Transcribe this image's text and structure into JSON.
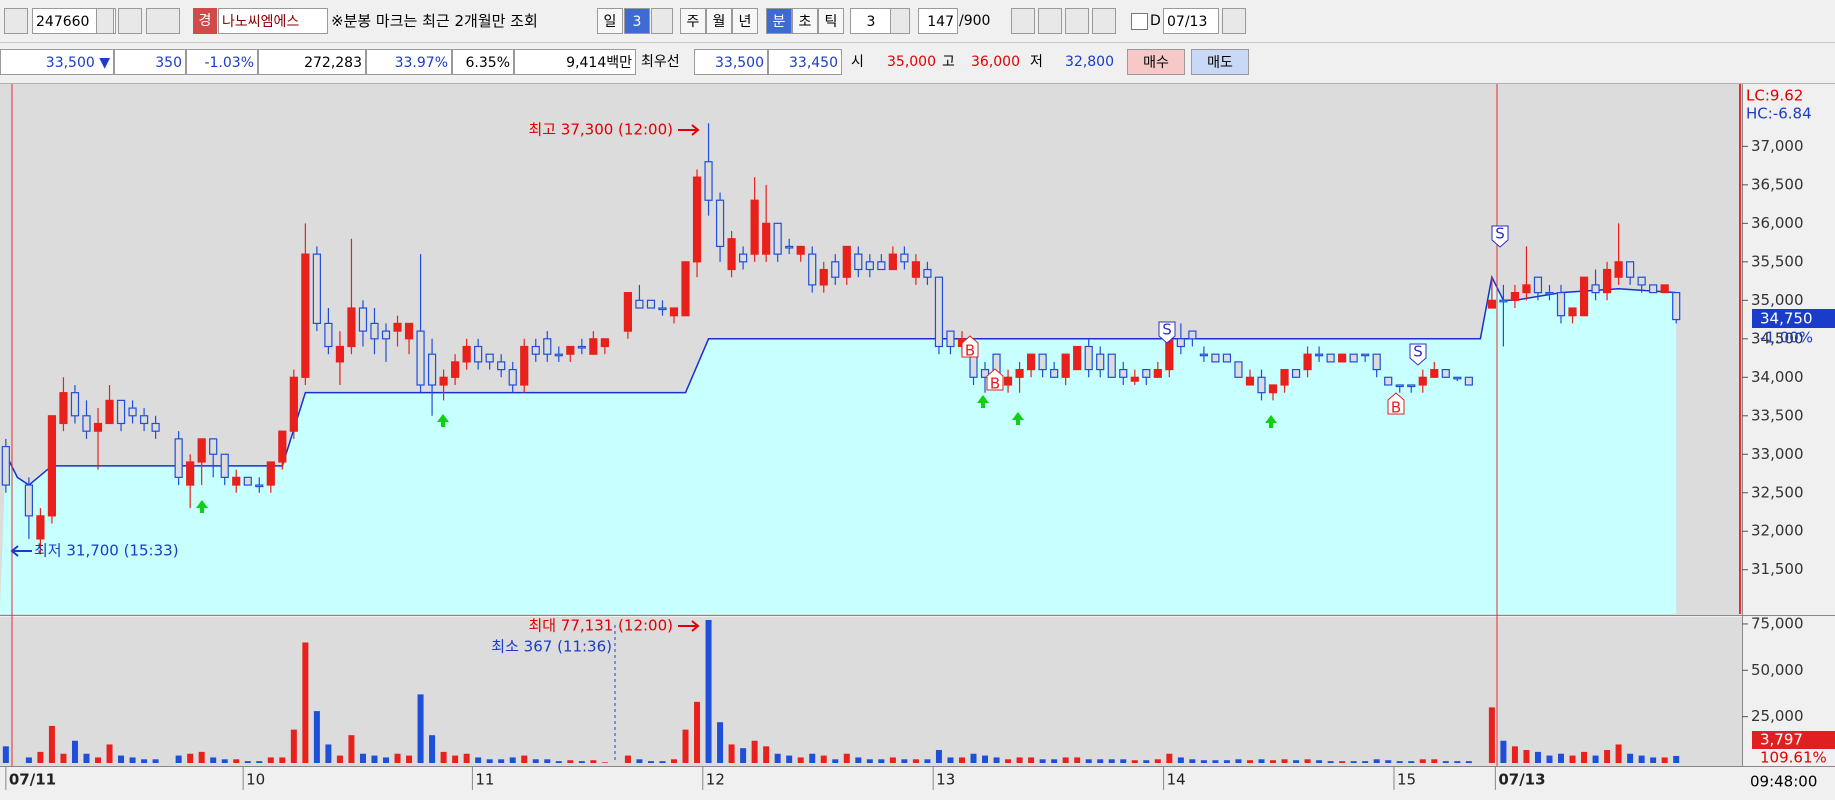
{
  "toolbar": {
    "code": "247660",
    "badge": "경",
    "name": "나노씨엠에스",
    "note": "※분봉 마크는 최근 2개월만 조회",
    "periods": [
      "일",
      "3",
      "주",
      "월",
      "년",
      "분",
      "초",
      "틱"
    ],
    "tick_count": "3",
    "count": "147",
    "max": "/900",
    "d_label": "D",
    "date": "07/13"
  },
  "quote": {
    "price": "33,500 ▼",
    "change": "350",
    "change_pct": "-1.03%",
    "volume": "272,283",
    "ratio1": "33.97%",
    "ratio2": "6.35%",
    "amount": "9,414백만",
    "best_label": "최우선",
    "ask": "33,500",
    "bid": "33,450",
    "open_label": "시",
    "open": "35,000",
    "high_label": "고",
    "high": "36,000",
    "low_label": "저",
    "low": "32,800",
    "buy": "매수",
    "sell": "매도"
  },
  "signals": {
    "buy": "B",
    "sell": "S"
  },
  "time_label": "09:48:00",
  "chart_data": [
    {
      "type": "candlestick",
      "up_color": "#e8211c",
      "down_color": "#1f4fd8",
      "x": [
        0,
        2,
        3,
        4,
        5,
        6,
        7,
        8,
        9,
        10,
        11,
        12,
        13,
        15,
        16,
        17,
        18,
        19,
        20,
        21,
        22,
        23,
        24,
        25,
        26,
        27,
        28,
        29,
        30,
        31,
        32,
        33,
        34,
        35,
        36,
        37,
        38,
        39,
        40,
        41,
        42,
        43,
        44,
        45,
        46,
        47,
        48,
        49,
        50,
        51,
        52,
        54,
        55,
        56,
        57,
        58,
        59,
        60,
        61,
        62,
        63,
        64,
        65,
        66,
        67,
        68,
        69,
        70,
        71,
        72,
        73,
        74,
        75,
        76,
        77,
        78,
        79,
        80,
        81,
        82,
        83,
        84,
        85,
        86,
        87,
        88,
        89,
        90,
        91,
        92,
        93,
        94,
        95,
        96,
        97,
        98,
        99,
        100,
        101,
        102,
        103,
        104,
        105,
        106,
        107,
        108,
        109,
        110,
        111,
        112,
        113,
        114,
        115,
        116,
        117,
        118,
        119,
        120,
        121,
        122,
        123,
        124,
        125,
        126,
        127,
        129,
        130,
        131,
        132,
        133,
        134,
        135,
        136,
        137,
        138,
        139,
        140,
        141,
        142,
        143,
        144,
        145
      ],
      "open": [
        33100,
        32600,
        31900,
        32200,
        33400,
        33800,
        33500,
        33300,
        33400,
        33700,
        33600,
        33500,
        33400,
        33200,
        32600,
        32900,
        33200,
        33000,
        32600,
        32700,
        32600,
        32600,
        32900,
        33300,
        34000,
        35600,
        34700,
        34200,
        34400,
        34900,
        34700,
        34600,
        34600,
        34500,
        34600,
        34300,
        33900,
        34000,
        34200,
        34400,
        34300,
        34200,
        34100,
        33900,
        34400,
        34500,
        34300,
        34300,
        34400,
        34300,
        34400,
        34600,
        35000,
        35000,
        34900,
        34800,
        34800,
        35500,
        36800,
        36300,
        35400,
        35600,
        35600,
        35600,
        36000,
        35700,
        35600,
        35600,
        35200,
        35500,
        35300,
        35600,
        35500,
        35500,
        35400,
        35600,
        35300,
        35400,
        35300,
        34600,
        34400,
        34400,
        34100,
        34300,
        33900,
        34000,
        34100,
        34300,
        34100,
        34000,
        34100,
        34400,
        34300,
        34300,
        34100,
        33950,
        34100,
        34000,
        34100,
        34500,
        34600,
        34300,
        34300,
        34300,
        34200,
        33900,
        34000,
        33800,
        33900,
        34100,
        34100,
        34300,
        34300,
        34200,
        34300,
        34300,
        34300,
        34000,
        33900,
        33900,
        33900,
        34000,
        34100,
        34000,
        34000,
        34900,
        35000,
        35000,
        35100,
        35300,
        35100,
        35100,
        34800,
        34800,
        35200,
        35100,
        35300,
        35500,
        35300,
        35200,
        35100,
        35100
      ],
      "high": [
        33200,
        32700,
        32300,
        33500,
        34000,
        33900,
        33700,
        33600,
        33900,
        33700,
        33700,
        33600,
        33500,
        33300,
        33000,
        33200,
        33200,
        33000,
        32800,
        32700,
        32700,
        32900,
        33300,
        34100,
        36000,
        35700,
        34900,
        34600,
        35800,
        35000,
        34900,
        34700,
        34800,
        34700,
        35600,
        34500,
        34100,
        34300,
        34500,
        34500,
        34300,
        34300,
        34200,
        34500,
        34500,
        34600,
        34400,
        34400,
        34500,
        34600,
        34500,
        35100,
        35200,
        35000,
        35000,
        34900,
        35500,
        36700,
        37300,
        36400,
        35900,
        35700,
        36600,
        36500,
        36000,
        35800,
        35700,
        35700,
        35500,
        35600,
        35700,
        35700,
        35600,
        35600,
        35700,
        35700,
        35600,
        35500,
        35300,
        34600,
        34600,
        34500,
        34200,
        34300,
        34100,
        34200,
        34300,
        34300,
        34200,
        34300,
        34400,
        34500,
        34400,
        34300,
        34200,
        34100,
        34100,
        34200,
        34700,
        34700,
        34600,
        34400,
        34300,
        34300,
        34200,
        34100,
        34100,
        33900,
        34100,
        34100,
        34400,
        34400,
        34300,
        34300,
        34300,
        34300,
        34300,
        34000,
        33900,
        33900,
        34100,
        34200,
        34100,
        34000,
        34000,
        35300,
        35200,
        35200,
        35700,
        35300,
        35200,
        35200,
        34900,
        35300,
        35400,
        35500,
        36000,
        35500,
        35300,
        35200,
        35200,
        35100
      ],
      "low": [
        32500,
        31900,
        31700,
        32100,
        33300,
        33400,
        33200,
        32800,
        33400,
        33300,
        33400,
        33300,
        33200,
        32600,
        32300,
        32600,
        32700,
        32600,
        32500,
        32600,
        32500,
        32500,
        32800,
        33200,
        33900,
        34600,
        34300,
        33900,
        34300,
        34400,
        34300,
        34200,
        34400,
        34300,
        33800,
        33500,
        33700,
        33900,
        34100,
        34100,
        34100,
        34000,
        33800,
        33800,
        34200,
        34200,
        34200,
        34200,
        34300,
        34300,
        34300,
        34500,
        34900,
        34900,
        34800,
        34700,
        34800,
        35300,
        36100,
        35500,
        35300,
        35400,
        35500,
        35500,
        35500,
        35600,
        35500,
        35100,
        35100,
        35200,
        35200,
        35300,
        35300,
        35400,
        35400,
        35400,
        35200,
        35200,
        34300,
        34300,
        34300,
        33900,
        33800,
        33900,
        33800,
        33800,
        34000,
        34000,
        34000,
        33900,
        34100,
        34000,
        34000,
        34000,
        33900,
        33900,
        33900,
        34000,
        34000,
        34300,
        34400,
        34200,
        34200,
        34200,
        34000,
        33900,
        33700,
        33700,
        33800,
        34000,
        34000,
        34200,
        34200,
        34200,
        34200,
        34200,
        34000,
        33900,
        33800,
        33800,
        33800,
        34000,
        34000,
        33950,
        33900,
        34900,
        34400,
        34900,
        35000,
        35000,
        35000,
        34700,
        34700,
        34800,
        35000,
        35000,
        35200,
        35200,
        35100,
        35100,
        35100,
        34700
      ],
      "close": [
        32600,
        32200,
        32200,
        33500,
        33800,
        33500,
        33300,
        33400,
        33700,
        33400,
        33500,
        33400,
        33300,
        32700,
        32900,
        33200,
        33000,
        32700,
        32700,
        32600,
        32600,
        32900,
        33300,
        34000,
        35600,
        34700,
        34400,
        34400,
        34900,
        34600,
        34500,
        34500,
        34700,
        34700,
        33900,
        33900,
        34000,
        34200,
        34400,
        34200,
        34200,
        34100,
        33900,
        34400,
        34300,
        34300,
        34300,
        34400,
        34400,
        34500,
        34500,
        35100,
        34900,
        34900,
        34900,
        34900,
        35500,
        36600,
        36300,
        35700,
        35800,
        35500,
        36300,
        36000,
        35600,
        35700,
        35700,
        35200,
        35400,
        35300,
        35700,
        35400,
        35400,
        35400,
        35600,
        35500,
        35500,
        35300,
        34400,
        34400,
        34500,
        34000,
        34000,
        34000,
        34000,
        34100,
        34300,
        34100,
        34000,
        34300,
        34400,
        34100,
        34100,
        34000,
        34000,
        34000,
        34000,
        34100,
        34600,
        34400,
        34500,
        34300,
        34200,
        34200,
        34000,
        34000,
        33800,
        33900,
        34100,
        34000,
        34300,
        34300,
        34200,
        34300,
        34200,
        34300,
        34100,
        33900,
        33900,
        33900,
        34000,
        34100,
        34000,
        34000,
        33900,
        35000,
        35000,
        35100,
        35200,
        35100,
        35100,
        34800,
        34900,
        35300,
        35100,
        35400,
        35500,
        35300,
        35200,
        35100,
        35200,
        34750
      ],
      "line": {
        "color": "#1a2fd0",
        "fill": "#c8ffff",
        "x": [
          0,
          1,
          2,
          4,
          24,
          26,
          59,
          61,
          128,
          129,
          130,
          131,
          135,
          140,
          145
        ],
        "values": [
          33000,
          32700,
          32600,
          32850,
          32850,
          33800,
          33800,
          34500,
          34500,
          35300,
          35000,
          35000,
          35100,
          35150,
          35100
        ]
      },
      "xlim": [
        0,
        145
      ],
      "xticks": [
        {
          "value": 0,
          "label": "07/11"
        },
        {
          "value": 20.6,
          "label": "10"
        },
        {
          "value": 40.5,
          "label": "11"
        },
        {
          "value": 60.5,
          "label": "12"
        },
        {
          "value": 80.5,
          "label": "13"
        },
        {
          "value": 100.5,
          "label": "14"
        },
        {
          "value": 120.5,
          "label": "15"
        },
        {
          "value": 129.3,
          "label": "07/13"
        }
      ],
      "ylim": [
        30925,
        37810
      ],
      "yticks": [
        {
          "value": 31500,
          "label": "31,500"
        },
        {
          "value": 32000,
          "label": "32,000"
        },
        {
          "value": 32500,
          "label": "32,500"
        },
        {
          "value": 33000,
          "label": "33,000"
        },
        {
          "value": 33500,
          "label": "33,500"
        },
        {
          "value": 34000,
          "label": "34,000"
        },
        {
          "value": 34500,
          "label": "34,500"
        },
        {
          "value": 35000,
          "label": "35,000"
        },
        {
          "value": 35500,
          "label": "35,500"
        },
        {
          "value": 36000,
          "label": "36,000"
        },
        {
          "value": 36500,
          "label": "36,500"
        },
        {
          "value": 37000,
          "label": "37,000"
        }
      ],
      "annotations": {
        "max": "최고 37,300 (12:00)",
        "min": "최저 31,700 (15:33)"
      },
      "right_labels": {
        "lc": "LC:9.62",
        "hc": "HC:-6.84",
        "last": "34,750",
        "last_pct": "-1.00%"
      }
    },
    {
      "type": "bar",
      "x": [
        0,
        2,
        3,
        4,
        5,
        6,
        7,
        8,
        9,
        10,
        11,
        12,
        13,
        15,
        16,
        17,
        18,
        19,
        20,
        21,
        22,
        23,
        24,
        25,
        26,
        27,
        28,
        29,
        30,
        31,
        32,
        33,
        34,
        35,
        36,
        37,
        38,
        39,
        40,
        41,
        42,
        43,
        44,
        45,
        46,
        47,
        48,
        49,
        50,
        51,
        52,
        54,
        55,
        56,
        57,
        58,
        59,
        60,
        61,
        62,
        63,
        64,
        65,
        66,
        67,
        68,
        69,
        70,
        71,
        72,
        73,
        74,
        75,
        76,
        77,
        78,
        79,
        80,
        81,
        82,
        83,
        84,
        85,
        86,
        87,
        88,
        89,
        90,
        91,
        92,
        93,
        94,
        95,
        96,
        97,
        98,
        99,
        100,
        101,
        102,
        103,
        104,
        105,
        106,
        107,
        108,
        109,
        110,
        111,
        112,
        113,
        114,
        115,
        116,
        117,
        118,
        119,
        120,
        121,
        122,
        123,
        124,
        125,
        126,
        127,
        129,
        130,
        131,
        132,
        133,
        134,
        135,
        136,
        137,
        138,
        139,
        140,
        141,
        142,
        143,
        144,
        145
      ],
      "values": [
        9000,
        3000,
        6000,
        20000,
        5000,
        12000,
        5000,
        3000,
        10000,
        4000,
        3000,
        2000,
        2000,
        4000,
        5000,
        6000,
        3000,
        2000,
        2000,
        1000,
        1000,
        3000,
        3000,
        18000,
        65000,
        28000,
        10000,
        4000,
        15000,
        5000,
        4000,
        3000,
        5000,
        4000,
        37000,
        15000,
        6000,
        4000,
        5000,
        3000,
        2000,
        2000,
        3000,
        4000,
        2000,
        2000,
        1000,
        1500,
        1000,
        1500,
        367,
        4000,
        2000,
        1000,
        1000,
        2000,
        18000,
        33000,
        77131,
        22000,
        10000,
        8000,
        12000,
        9000,
        5000,
        4000,
        3000,
        5000,
        4000,
        2000,
        5000,
        3000,
        2000,
        2000,
        3000,
        2000,
        2000,
        2000,
        7000,
        3000,
        3000,
        5000,
        4000,
        3000,
        2000,
        3000,
        3000,
        2000,
        2000,
        3000,
        3000,
        2000,
        2000,
        2000,
        2000,
        1500,
        1500,
        2000,
        5000,
        3000,
        2000,
        1500,
        1500,
        1500,
        2000,
        1500,
        2000,
        1500,
        2000,
        1500,
        2000,
        1500,
        1000,
        1000,
        1000,
        1000,
        2000,
        1500,
        1000,
        1000,
        2000,
        2000,
        1000,
        1000,
        1000,
        30000,
        12000,
        9000,
        7000,
        6000,
        4000,
        5000,
        4000,
        6000,
        4000,
        7000,
        10000,
        5000,
        4000,
        3000,
        3000,
        3797
      ],
      "xlim": [
        0,
        145
      ],
      "ylim": [
        0,
        78200
      ],
      "yticks": [
        {
          "value": 25000,
          "label": "25,000"
        },
        {
          "value": 50000,
          "label": "50,000"
        },
        {
          "value": 75000,
          "label": "75,000"
        }
      ],
      "annotations": {
        "max": "최대 77,131 (12:00)",
        "min": "최소 367 (11:36)"
      },
      "right_labels": {
        "last": "3,797",
        "last_pct": "109.61%"
      }
    }
  ]
}
